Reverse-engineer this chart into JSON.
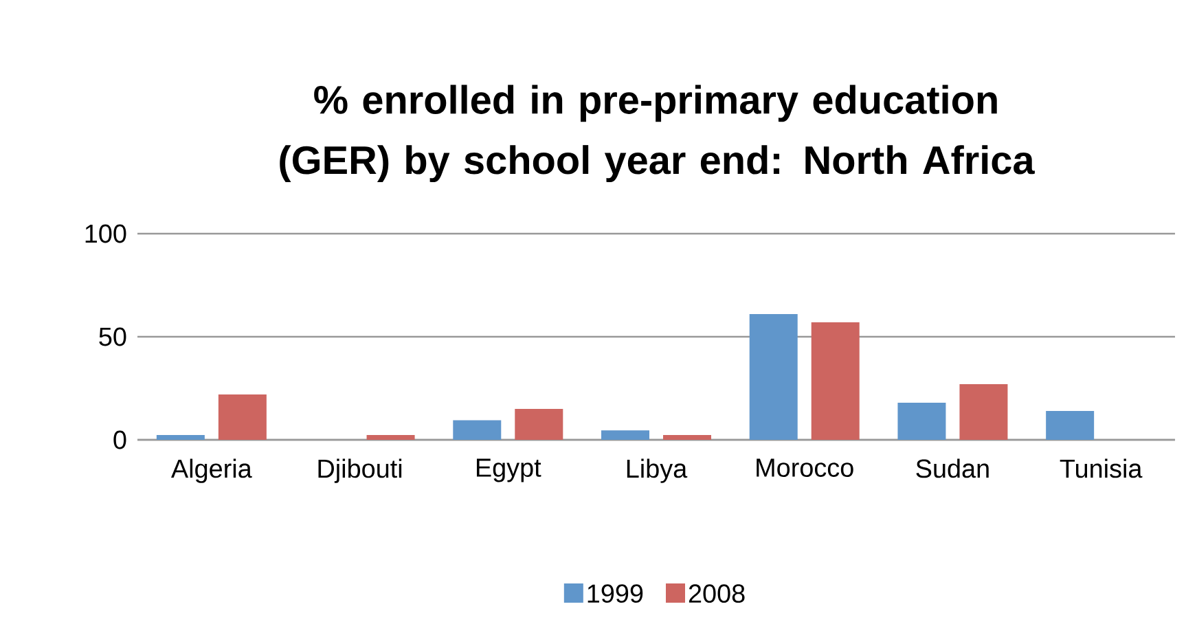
{
  "chart_data": {
    "type": "bar",
    "title": "% enrolled in pre-primary education (GER) by school year end: North Africa",
    "categories": [
      "Algeria",
      "Djibouti",
      "Egypt",
      "Libya",
      "Morocco",
      "Sudan",
      "Tunisia"
    ],
    "series": [
      {
        "name": "1999",
        "color": "#6096cb",
        "values": [
          2.3,
          null,
          9.5,
          4.6,
          61,
          18,
          14
        ]
      },
      {
        "name": "2008",
        "color": "#cd6560",
        "values": [
          22,
          2.3,
          15,
          2.3,
          57,
          27,
          null
        ]
      }
    ],
    "ylim": [
      0,
      100
    ],
    "yticks": [
      0,
      50,
      100
    ],
    "grid": "y",
    "legend": "bottom"
  }
}
